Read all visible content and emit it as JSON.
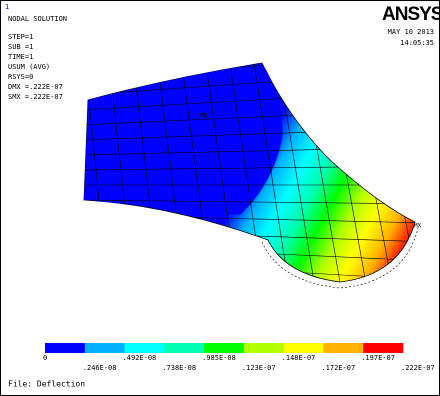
{
  "header": {
    "window_number": "1",
    "title": "NODAL SOLUTION",
    "info": [
      "STEP=1",
      "SUB =1",
      "TIME=1",
      "USUM      (AVG)",
      "RSYS=0",
      "DMX =.222E-07",
      "SMX =.222E-07"
    ],
    "logo": "ANSYS",
    "date": "MAY 10 2013",
    "time": "14:05:35"
  },
  "plot": {
    "min_label": "MN",
    "max_label": "MX"
  },
  "legend": {
    "colors": [
      "#0000ff",
      "#00b2ff",
      "#00ffff",
      "#00ffb2",
      "#00ff00",
      "#b2ff00",
      "#ffff00",
      "#ffb200",
      "#ff0000"
    ],
    "labels": [
      "0",
      ".246E-08",
      ".492E-08",
      ".738E-08",
      ".985E-08",
      ".123E-07",
      ".148E-07",
      ".172E-07",
      ".197E-07",
      ".222E-07"
    ]
  },
  "footer": {
    "file": "File: Deflection"
  }
}
